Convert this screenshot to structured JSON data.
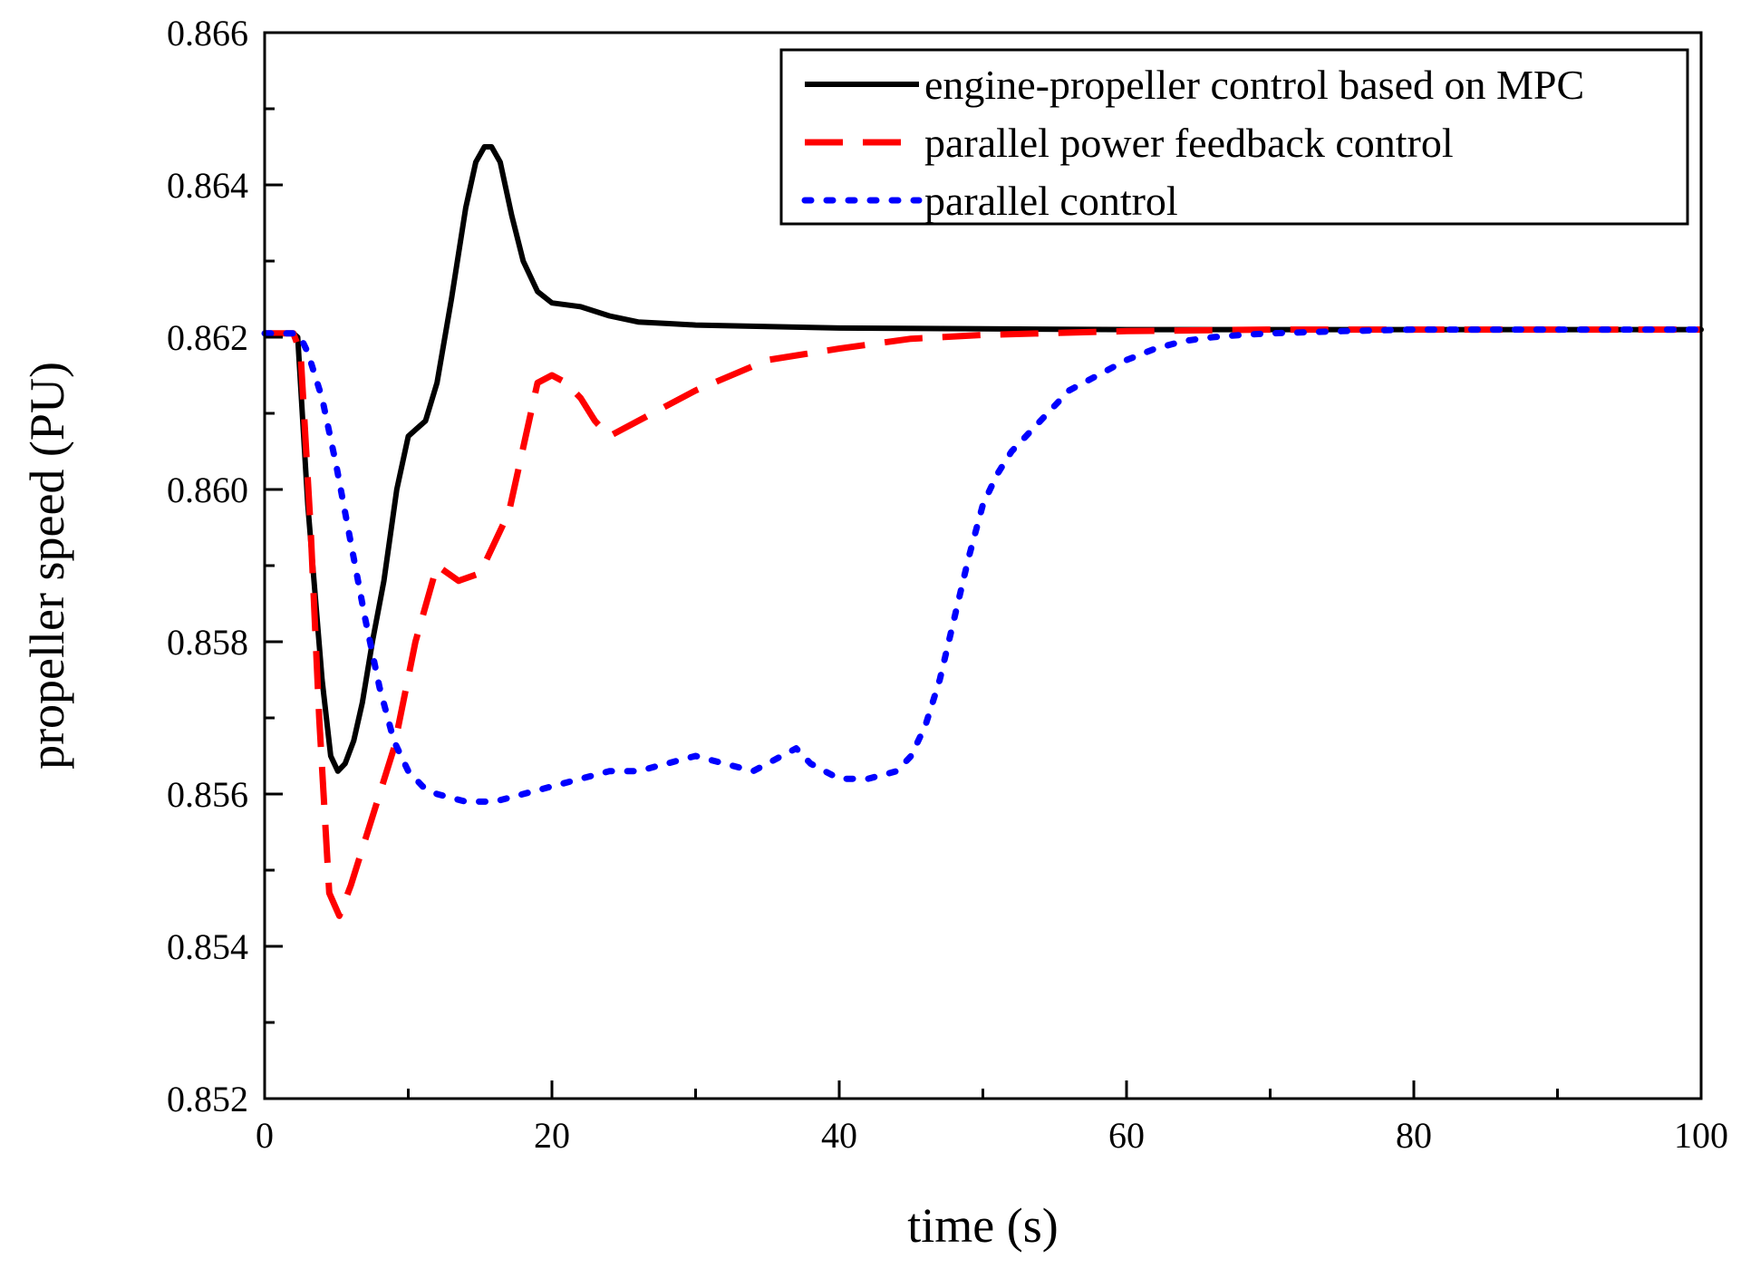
{
  "chart_data": {
    "type": "line",
    "title": "",
    "xlabel": "time (s)",
    "ylabel": "propeller speed (PU)",
    "xlim": [
      0,
      100
    ],
    "ylim": [
      0.852,
      0.866
    ],
    "x_major_ticks": [
      0,
      20,
      40,
      60,
      80,
      100
    ],
    "x_tick_labels": [
      "0",
      "20",
      "40",
      "60",
      "80",
      "100"
    ],
    "x_minor_step": 10,
    "y_major_ticks": [
      0.852,
      0.854,
      0.856,
      0.858,
      0.86,
      0.862,
      0.864,
      0.866
    ],
    "y_tick_labels": [
      "0.852",
      "0.854",
      "0.856",
      "0.858",
      "0.860",
      "0.862",
      "0.864",
      "0.866"
    ],
    "y_minor_step": 0.001,
    "grid": false,
    "legend_position": "top-right",
    "series": [
      {
        "name": "engine-propeller control based on MPC",
        "color": "#000000",
        "style": "solid",
        "x": [
          0,
          2,
          2.3,
          3,
          4,
          4.6,
          5.1,
          5.6,
          6.2,
          6.8,
          7.5,
          8.3,
          9.2,
          10,
          10.6,
          11.2,
          12,
          13,
          14,
          14.7,
          15.3,
          15.8,
          16.4,
          17.2,
          18,
          19,
          20,
          22,
          24,
          26,
          28,
          30,
          35,
          40,
          50,
          60,
          70,
          80,
          90,
          100
        ],
        "y": [
          0.86205,
          0.86205,
          0.862,
          0.8598,
          0.8575,
          0.8565,
          0.8563,
          0.8564,
          0.8567,
          0.8572,
          0.858,
          0.8588,
          0.86,
          0.8607,
          0.8608,
          0.8609,
          0.8614,
          0.8625,
          0.8637,
          0.8643,
          0.8645,
          0.8645,
          0.8643,
          0.8636,
          0.863,
          0.8626,
          0.86245,
          0.8624,
          0.86228,
          0.8622,
          0.86218,
          0.86216,
          0.86214,
          0.86212,
          0.86211,
          0.8621,
          0.8621,
          0.8621,
          0.8621,
          0.8621
        ]
      },
      {
        "name": "parallel power feedback control",
        "color": "#ff0000",
        "style": "dashed",
        "x": [
          0,
          2,
          2.5,
          3.2,
          3.8,
          4.5,
          5.2,
          6,
          7.5,
          9,
          10.5,
          12,
          13.5,
          15,
          17,
          19,
          20,
          21,
          22,
          23,
          24,
          26,
          30,
          35,
          40,
          45,
          50,
          60,
          70,
          80,
          90,
          100
        ],
        "y": [
          0.86205,
          0.86205,
          0.8618,
          0.8595,
          0.857,
          0.8547,
          0.8544,
          0.8548,
          0.8557,
          0.8566,
          0.858,
          0.859,
          0.8588,
          0.8589,
          0.8597,
          0.8614,
          0.8615,
          0.8614,
          0.8612,
          0.8609,
          0.8607,
          0.8609,
          0.8613,
          0.8617,
          0.86185,
          0.86198,
          0.86203,
          0.86208,
          0.8621,
          0.8621,
          0.8621,
          0.8621
        ]
      },
      {
        "name": "parallel control",
        "color": "#0000ff",
        "style": "dotted",
        "x": [
          0,
          2,
          2.5,
          3,
          4,
          5,
          6,
          7,
          8,
          9,
          10,
          11,
          12,
          14,
          16,
          18,
          20,
          22,
          24,
          26,
          28,
          30,
          32,
          34,
          36,
          37,
          38,
          39,
          40,
          42,
          44,
          45,
          46,
          47,
          48,
          49,
          50,
          51,
          52,
          54,
          56,
          58,
          60,
          62,
          64,
          66,
          68,
          70,
          75,
          80,
          90,
          100
        ],
        "y": [
          0.86205,
          0.86205,
          0.862,
          0.8618,
          0.8612,
          0.8603,
          0.8593,
          0.8583,
          0.8574,
          0.8567,
          0.8563,
          0.8561,
          0.856,
          0.8559,
          0.8559,
          0.856,
          0.8561,
          0.8562,
          0.8563,
          0.8563,
          0.8564,
          0.8565,
          0.8564,
          0.8563,
          0.8565,
          0.8566,
          0.8564,
          0.8563,
          0.8562,
          0.8562,
          0.8563,
          0.8565,
          0.8569,
          0.8575,
          0.8583,
          0.8591,
          0.8598,
          0.8602,
          0.8605,
          0.8609,
          0.8613,
          0.8615,
          0.8617,
          0.86185,
          0.86195,
          0.862,
          0.86203,
          0.86205,
          0.86208,
          0.8621,
          0.8621,
          0.8621
        ]
      }
    ]
  }
}
